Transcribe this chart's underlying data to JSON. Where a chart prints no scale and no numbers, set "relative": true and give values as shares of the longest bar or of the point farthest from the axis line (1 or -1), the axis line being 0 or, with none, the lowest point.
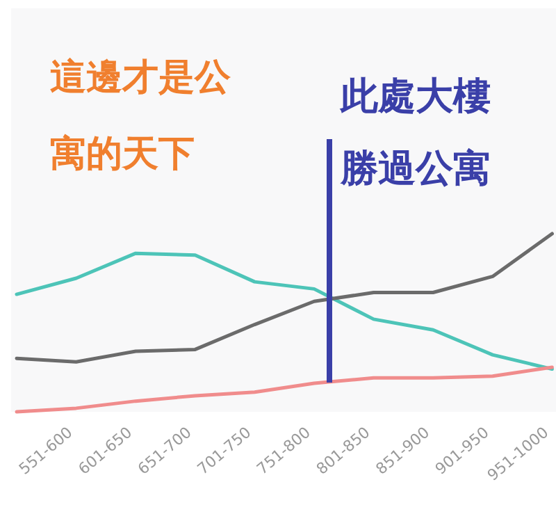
{
  "chart_data": {
    "type": "line",
    "relative": true,
    "categories": [
      null,
      "551-600",
      "601-650",
      "651-700",
      "701-750",
      "751-800",
      "801-850",
      "851-900",
      "901-950",
      "951-1000"
    ],
    "series": [
      {
        "color": "#4dc4b8",
        "values": [
          0.66,
          0.75,
          0.89,
          0.88,
          0.73,
          0.69,
          0.52,
          0.46,
          0.32,
          0.24
        ]
      },
      {
        "color": "#6b6b6b",
        "values": [
          0.3,
          0.28,
          0.34,
          0.35,
          0.49,
          0.62,
          0.67,
          0.67,
          0.76,
          1
        ]
      },
      {
        "color": "#f08c8c",
        "values": [
          0,
          0.02,
          0.06,
          0.09,
          0.11,
          0.16,
          0.19,
          0.19,
          0.2,
          0.25
        ]
      }
    ],
    "ref_lines": [
      {
        "axis": "x",
        "value": "751-800",
        "color": "#3a3fa8"
      }
    ],
    "annotations": [
      "這邊才是公寓的天下",
      "此處大樓勝過公寓"
    ]
  }
}
